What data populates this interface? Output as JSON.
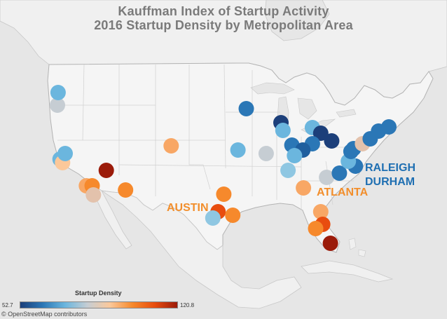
{
  "title_line1": "Kauffman Index of Startup Activity",
  "title_line2": "2016 Startup Density by Metropolitan Area",
  "colors": {
    "land_us": "#f5f5f5",
    "land_other": "#f0f0f0",
    "water": "#e6e6e6",
    "border": "#b3b3b3",
    "austin": "#f28e2b",
    "atlanta": "#f28e2b",
    "raleigh_durham": "#1f6fb2"
  },
  "city_labels": {
    "austin": "AUSTIN",
    "atlanta": "ATLANTA",
    "raleigh": "RALEIGH",
    "durham": "DURHAM"
  },
  "legend": {
    "title": "Startup Density",
    "min": "52.7",
    "max": "120.8",
    "gradient": [
      "#1c3f7a",
      "#2b77b6",
      "#6bb6de",
      "#c6cdd3",
      "#fbc89a",
      "#f6892c",
      "#e84d0f",
      "#9b1b0a"
    ]
  },
  "credit": "© OpenStreetMap contributors",
  "chart_data": {
    "type": "scatter",
    "title": "Kauffman Index of Startup Activity 2016 Startup Density by Metropolitan Area",
    "value_label": "Startup Density",
    "value_range": [
      52.7,
      120.8
    ],
    "metros": [
      {
        "id": "portland",
        "lon": -122.7,
        "lat": 45.5,
        "color": "#c6cdd3"
      },
      {
        "id": "seattle-area",
        "lon": -122.6,
        "lat": 47.3,
        "color": "#6bb6de"
      },
      {
        "id": "sf-bay",
        "lon": -122.3,
        "lat": 37.8,
        "color": "#6bb6de"
      },
      {
        "id": "san-jose",
        "lon": -121.9,
        "lat": 37.3,
        "color": "#fbc89a"
      },
      {
        "id": "sacramento",
        "lon": -121.5,
        "lat": 38.6,
        "color": "#6bb6de"
      },
      {
        "id": "las-vegas",
        "lon": -115.1,
        "lat": 36.2,
        "color": "#9b1b0a"
      },
      {
        "id": "los-angeles",
        "lon": -118.2,
        "lat": 34.0,
        "color": "#f8a765"
      },
      {
        "id": "riverside",
        "lon": -117.3,
        "lat": 34.0,
        "color": "#f6892c"
      },
      {
        "id": "san-diego",
        "lon": -117.1,
        "lat": 32.7,
        "color": "#e3c2ac"
      },
      {
        "id": "phoenix",
        "lon": -112.1,
        "lat": 33.4,
        "color": "#f6892c"
      },
      {
        "id": "denver",
        "lon": -105.0,
        "lat": 39.7,
        "color": "#f8a765"
      },
      {
        "id": "kansas-city",
        "lon": -94.6,
        "lat": 39.1,
        "color": "#6bb6de"
      },
      {
        "id": "st-louis",
        "lon": -90.2,
        "lat": 38.6,
        "color": "#c6cdd3"
      },
      {
        "id": "minneapolis",
        "lon": -93.3,
        "lat": 45.0,
        "color": "#2b77b6"
      },
      {
        "id": "milwaukee",
        "lon": -87.9,
        "lat": 43.0,
        "color": "#1c3f7a"
      },
      {
        "id": "chicago",
        "lon": -87.6,
        "lat": 41.9,
        "color": "#6bb6de"
      },
      {
        "id": "detroit",
        "lon": -83.0,
        "lat": 42.3,
        "color": "#6bb6de"
      },
      {
        "id": "cleveland",
        "lon": -81.7,
        "lat": 41.5,
        "color": "#1c3f7a"
      },
      {
        "id": "pittsburgh",
        "lon": -80.0,
        "lat": 40.4,
        "color": "#1c3f7a"
      },
      {
        "id": "columbus",
        "lon": -83.0,
        "lat": 40.0,
        "color": "#2b77b6"
      },
      {
        "id": "indianapolis",
        "lon": -86.2,
        "lat": 39.8,
        "color": "#2b77b6"
      },
      {
        "id": "cincinnati",
        "lon": -84.5,
        "lat": 39.1,
        "color": "#1f5f9e"
      },
      {
        "id": "louisville",
        "lon": -85.8,
        "lat": 38.3,
        "color": "#6bb6de"
      },
      {
        "id": "nashville",
        "lon": -86.8,
        "lat": 36.2,
        "color": "#8fc7e2"
      },
      {
        "id": "charlotte",
        "lon": -80.8,
        "lat": 35.2,
        "color": "#c6cdd3"
      },
      {
        "id": "raleigh-durham",
        "lon": -78.8,
        "lat": 35.8,
        "color": "#2b77b6"
      },
      {
        "id": "virginia-beach",
        "lon": -76.3,
        "lat": 36.8,
        "color": "#2b77b6"
      },
      {
        "id": "richmond",
        "lon": -77.4,
        "lat": 37.5,
        "color": "#6bb6de"
      },
      {
        "id": "washington-dc",
        "lon": -77.0,
        "lat": 38.9,
        "color": "#2b77b6"
      },
      {
        "id": "baltimore",
        "lon": -76.6,
        "lat": 39.3,
        "color": "#2b77b6"
      },
      {
        "id": "philadelphia",
        "lon": -75.2,
        "lat": 40.0,
        "color": "#e3c2ac"
      },
      {
        "id": "new-york",
        "lon": -74.0,
        "lat": 40.7,
        "color": "#2b77b6"
      },
      {
        "id": "hartford",
        "lon": -72.7,
        "lat": 41.8,
        "color": "#2b77b6"
      },
      {
        "id": "boston",
        "lon": -71.1,
        "lat": 42.4,
        "color": "#2b77b6"
      },
      {
        "id": "atlanta",
        "lon": -84.4,
        "lat": 33.7,
        "color": "#f8a765"
      },
      {
        "id": "jacksonville",
        "lon": -81.7,
        "lat": 30.3,
        "color": "#f8a765"
      },
      {
        "id": "orlando",
        "lon": -81.4,
        "lat": 28.5,
        "color": "#e84d0f"
      },
      {
        "id": "tampa",
        "lon": -82.5,
        "lat": 27.9,
        "color": "#f6892c"
      },
      {
        "id": "miami",
        "lon": -80.2,
        "lat": 25.8,
        "color": "#9b1b0a"
      },
      {
        "id": "dallas",
        "lon": -96.8,
        "lat": 32.8,
        "color": "#f6892c"
      },
      {
        "id": "austin",
        "lon": -97.7,
        "lat": 30.3,
        "color": "#e84d0f"
      },
      {
        "id": "san-antonio",
        "lon": -98.5,
        "lat": 29.4,
        "color": "#8fc7e2"
      },
      {
        "id": "houston",
        "lon": -95.4,
        "lat": 29.8,
        "color": "#f6892c"
      }
    ]
  }
}
